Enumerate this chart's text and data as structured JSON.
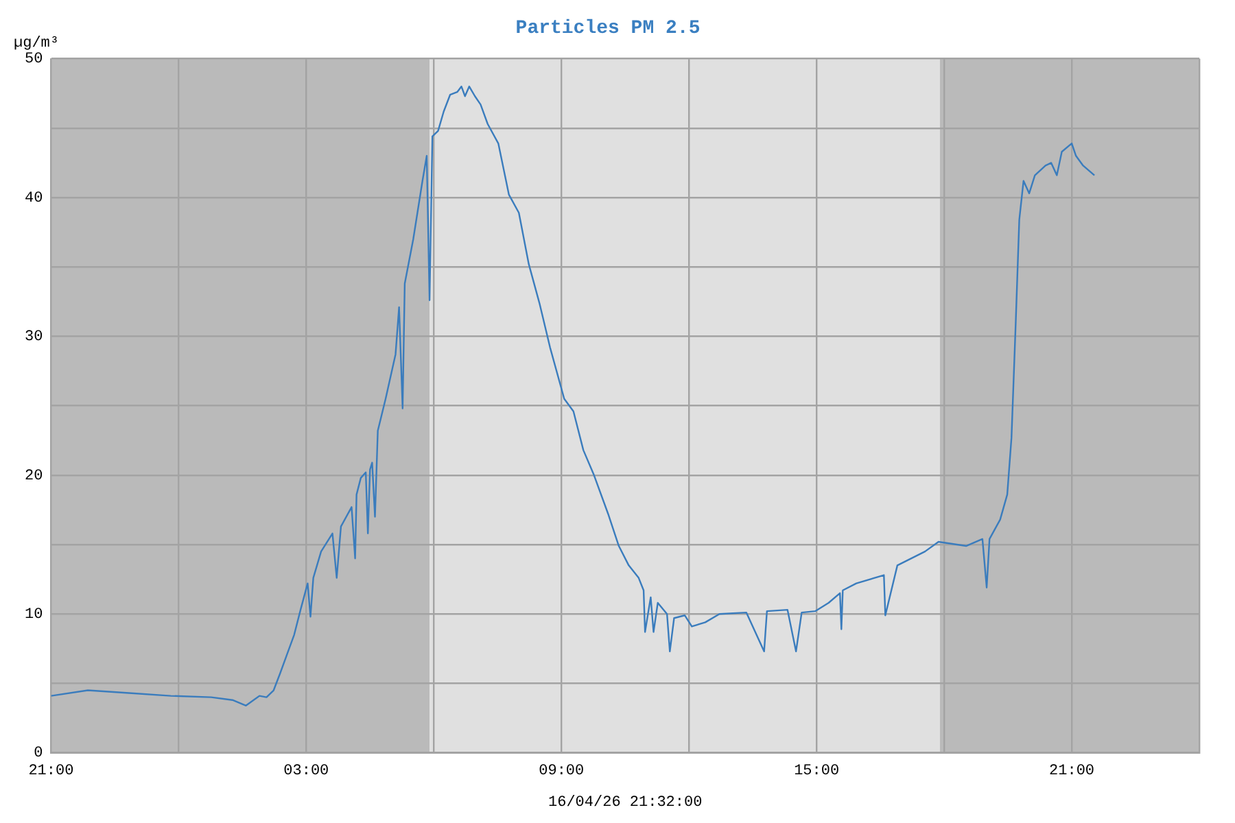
{
  "chart_data": {
    "type": "line",
    "title": "Particles PM 2.5",
    "ylabel": "µg/m³",
    "annotations": [
      "16/04/26 21:32:00"
    ],
    "series": [
      {
        "color": "#3a7cbd",
        "x": [
          "--04-15T21:00",
          "--04-15T21:52",
          "--04-15T22:50",
          "--04-15T23:49",
          "--04-16T00:46",
          "--04-16T01:16",
          "--04-16T01:35",
          "--04-16T01:54",
          "--04-16T02:04",
          "--04-16T02:14",
          "--04-16T02:23",
          "--04-16T02:33",
          "--04-16T02:43",
          "--04-16T02:52",
          "--04-16T03:02",
          "--04-16T03:06",
          "--04-16T03:10",
          "--04-16T03:21",
          "--04-16T03:37",
          "--04-16T03:43",
          "--04-16T03:49",
          "--04-16T04:04",
          "--04-16T04:09",
          "--04-16T04:11",
          "--04-16T04:17",
          "--04-16T04:24",
          "--04-16T04:27",
          "--04-16T04:30",
          "--04-16T04:33",
          "--04-16T04:37",
          "--04-16T04:41",
          "--04-16T04:52",
          "--04-16T05:06",
          "--04-16T05:11",
          "--04-16T05:16",
          "--04-16T05:19",
          "--04-16T05:31",
          "--04-16T05:44",
          "--04-16T05:50",
          "--04-16T05:54",
          "--04-16T05:58",
          "--04-16T06:06",
          "--04-16T06:14",
          "--04-16T06:23",
          "--04-16T06:33",
          "--04-16T06:39",
          "--04-16T06:44",
          "--04-16T06:50",
          "--04-16T06:58",
          "--04-16T07:06",
          "--04-16T07:16",
          "--04-16T07:31",
          "--04-16T07:46",
          "--04-16T08:00",
          "--04-16T08:14",
          "--04-16T08:29",
          "--04-16T08:44",
          "--04-16T09:04",
          "--04-16T09:17",
          "--04-16T09:31",
          "--04-16T09:46",
          "--04-16T10:06",
          "--04-16T10:21",
          "--04-16T10:35",
          "--04-16T10:49",
          "--04-16T10:56",
          "--04-16T10:58",
          "--04-16T11:06",
          "--04-16T11:10",
          "--04-16T11:16",
          "--04-16T11:29",
          "--04-16T11:33",
          "--04-16T11:39",
          "--04-16T11:54",
          "--04-16T12:04",
          "--04-16T12:23",
          "--04-16T12:43",
          "--04-16T13:21",
          "--04-16T13:46",
          "--04-16T13:50",
          "--04-16T14:19",
          "--04-16T14:31",
          "--04-16T14:39",
          "--04-16T14:58",
          "--04-16T15:17",
          "--04-16T15:33",
          "--04-16T15:35",
          "--04-16T15:37",
          "--04-16T15:56",
          "--04-16T16:35",
          "--04-16T16:37",
          "--04-16T16:54",
          "--04-16T17:33",
          "--04-16T17:52",
          "--04-16T18:31",
          "--04-16T18:54",
          "--04-16T19:00",
          "--04-16T19:04",
          "--04-16T19:19",
          "--04-16T19:29",
          "--04-16T19:35",
          "--04-16T19:41",
          "--04-16T19:46",
          "--04-16T19:52",
          "--04-16T20:00",
          "--04-16T20:08",
          "--04-16T20:23",
          "--04-16T20:31",
          "--04-16T20:39",
          "--04-16T20:46",
          "--04-16T21:00",
          "--04-16T21:06",
          "--04-16T21:16",
          "--04-16T21:32"
        ],
        "values": [
          4.1,
          4.5,
          4.3,
          4.1,
          4.0,
          3.8,
          3.4,
          4.1,
          4.0,
          4.5,
          5.7,
          7.1,
          8.5,
          10.3,
          12.2,
          9.8,
          12.6,
          14.5,
          15.8,
          12.6,
          16.3,
          17.7,
          14.0,
          18.6,
          19.8,
          20.2,
          15.8,
          20.4,
          20.9,
          17.0,
          23.2,
          25.5,
          28.7,
          32.1,
          24.8,
          33.8,
          37.0,
          41.2,
          43.0,
          32.6,
          44.4,
          44.8,
          46.2,
          47.4,
          47.6,
          48.0,
          47.3,
          48.0,
          47.3,
          46.7,
          45.3,
          43.9,
          40.2,
          38.9,
          35.2,
          32.4,
          29.2,
          25.5,
          24.6,
          21.8,
          20.0,
          17.2,
          14.9,
          13.5,
          12.6,
          11.7,
          8.7,
          11.2,
          8.7,
          10.8,
          10.0,
          7.3,
          9.7,
          9.9,
          9.1,
          9.4,
          10.0,
          10.1,
          7.3,
          10.2,
          10.3,
          7.3,
          10.1,
          10.2,
          10.8,
          11.5,
          8.9,
          11.7,
          12.2,
          12.8,
          9.9,
          13.5,
          14.5,
          15.2,
          14.9,
          15.4,
          11.9,
          15.4,
          16.8,
          18.6,
          22.7,
          31.0,
          38.4,
          41.2,
          40.3,
          41.6,
          42.3,
          42.5,
          41.6,
          43.3,
          43.9,
          43.0,
          42.3,
          41.6
        ]
      }
    ],
    "xlim": [
      "--04-15T21:00",
      "--04-17T00:00"
    ],
    "xticks": [
      {
        "value": "--04-15T21:00",
        "label": "21:00"
      },
      {
        "value": "--04-16T00:00",
        "label": null
      },
      {
        "value": "--04-16T03:00",
        "label": "03:00"
      },
      {
        "value": "--04-16T06:00",
        "label": null
      },
      {
        "value": "--04-16T09:00",
        "label": "09:00"
      },
      {
        "value": "--04-16T12:00",
        "label": null
      },
      {
        "value": "--04-16T15:00",
        "label": "15:00"
      },
      {
        "value": "--04-16T18:00",
        "label": null
      },
      {
        "value": "--04-16T21:00",
        "label": "21:00"
      },
      {
        "value": "--04-17T00:00",
        "label": null
      }
    ],
    "ylim": [
      0,
      50
    ],
    "yticks": [
      0,
      {
        "value": 5,
        "label": null
      },
      10,
      {
        "value": 15,
        "label": null
      },
      20,
      {
        "value": 25,
        "label": null
      },
      30,
      {
        "value": 35,
        "label": null
      },
      40,
      {
        "value": 45,
        "label": null
      },
      50
    ],
    "bands": [
      {
        "axis": "x",
        "from": "--04-15T21:00",
        "to": "--04-16T05:54",
        "color": "#bababa"
      },
      {
        "axis": "x",
        "from": "--04-16T05:54",
        "to": "--04-16T17:54",
        "color": "#e0e0e0"
      },
      {
        "axis": "x",
        "from": "--04-16T17:54",
        "to": "--04-17T00:00",
        "color": "#bababa"
      }
    ],
    "grid": true,
    "legend": false,
    "marker": "none",
    "line_style": "solid"
  }
}
